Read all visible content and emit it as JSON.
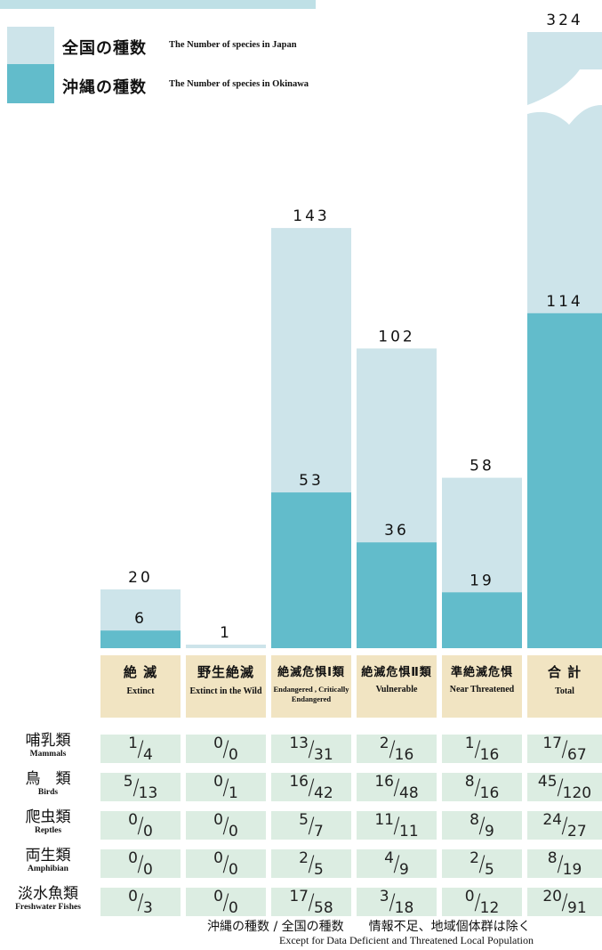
{
  "colors": {
    "japan": "#cde4ea",
    "okinawa": "#62bccb",
    "category_bg": "#f1e4c2",
    "cell_bg": "#dcede2"
  },
  "legend": {
    "japan_jp": "全国の種数",
    "japan_en": "The Number of species in Japan",
    "okinawa_jp": "沖縄の種数",
    "okinawa_en": "The Number of species in Okinawa"
  },
  "chart_data": {
    "type": "bar",
    "categories": [
      "絶 滅",
      "野生絶滅",
      "絶滅危惧Ⅰ類",
      "絶滅危惧Ⅱ類",
      "準絶滅危惧",
      "合 計"
    ],
    "categories_en": [
      "Extinct",
      "Extinct in the Wild",
      "Endangered , Critically Endangered",
      "Vulnerable",
      "Near Threatened",
      "Total"
    ],
    "series": [
      {
        "name": "全国の種数",
        "values": [
          20,
          1,
          143,
          102,
          58,
          324
        ]
      },
      {
        "name": "沖縄の種数",
        "values": [
          6,
          0,
          53,
          36,
          19,
          114
        ]
      }
    ],
    "okinawa_labels": [
      "6",
      "",
      "53",
      "36",
      "19",
      "114"
    ],
    "japan_labels": [
      "20",
      "1",
      "143",
      "102",
      "58",
      "324"
    ],
    "ylim": [
      0,
      160
    ],
    "axis_break": "total bar truncated with wave break"
  },
  "table": {
    "rows": [
      {
        "jp": "哺乳類",
        "en": "Mammals",
        "cells": [
          [
            "1",
            "4"
          ],
          [
            "0",
            "0"
          ],
          [
            "13",
            "31"
          ],
          [
            "2",
            "16"
          ],
          [
            "1",
            "16"
          ],
          [
            "17",
            "67"
          ]
        ]
      },
      {
        "jp": "鳥　類",
        "en": "Birds",
        "cells": [
          [
            "5",
            "13"
          ],
          [
            "0",
            "1"
          ],
          [
            "16",
            "42"
          ],
          [
            "16",
            "48"
          ],
          [
            "8",
            "16"
          ],
          [
            "45",
            "120"
          ]
        ]
      },
      {
        "jp": "爬虫類",
        "en": "Reptles",
        "cells": [
          [
            "0",
            "0"
          ],
          [
            "0",
            "0"
          ],
          [
            "5",
            "7"
          ],
          [
            "11",
            "11"
          ],
          [
            "8",
            "9"
          ],
          [
            "24",
            "27"
          ]
        ]
      },
      {
        "jp": "両生類",
        "en": "Amphibian",
        "cells": [
          [
            "0",
            "0"
          ],
          [
            "0",
            "0"
          ],
          [
            "2",
            "5"
          ],
          [
            "4",
            "9"
          ],
          [
            "2",
            "5"
          ],
          [
            "8",
            "19"
          ]
        ]
      },
      {
        "jp": "淡水魚類",
        "en": "Freshwater Fishes",
        "cells": [
          [
            "0",
            "3"
          ],
          [
            "0",
            "0"
          ],
          [
            "17",
            "58"
          ],
          [
            "3",
            "18"
          ],
          [
            "0",
            "12"
          ],
          [
            "20",
            "91"
          ]
        ]
      }
    ]
  },
  "footer": {
    "jp": "沖縄の種数 / 全国の種数　　情報不足、地域個体群は除く",
    "en": "Except  for Data Deficient and Threatened Local Population"
  }
}
